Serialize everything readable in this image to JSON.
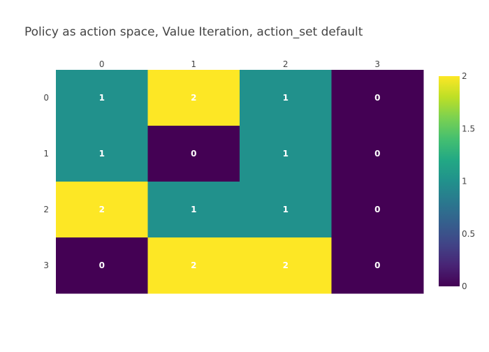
{
  "chart_data": {
    "type": "heatmap",
    "title": "Policy as action space, Value Iteration, action_set default",
    "x": [
      0,
      1,
      2,
      3
    ],
    "y": [
      0,
      1,
      2,
      3
    ],
    "z": [
      [
        1,
        2,
        1,
        0
      ],
      [
        1,
        0,
        1,
        0
      ],
      [
        2,
        1,
        1,
        0
      ],
      [
        0,
        2,
        2,
        0
      ]
    ],
    "zlim": [
      0,
      2
    ],
    "colorscale": "viridis",
    "colorbar_ticks": [
      "0",
      "0.5",
      "1",
      "1.5",
      "2"
    ],
    "x_axis_side": "top",
    "y_axis_reversed": true,
    "cell_text_color": "#ffffff",
    "title_color": "#444444",
    "tick_color": "#444444"
  }
}
